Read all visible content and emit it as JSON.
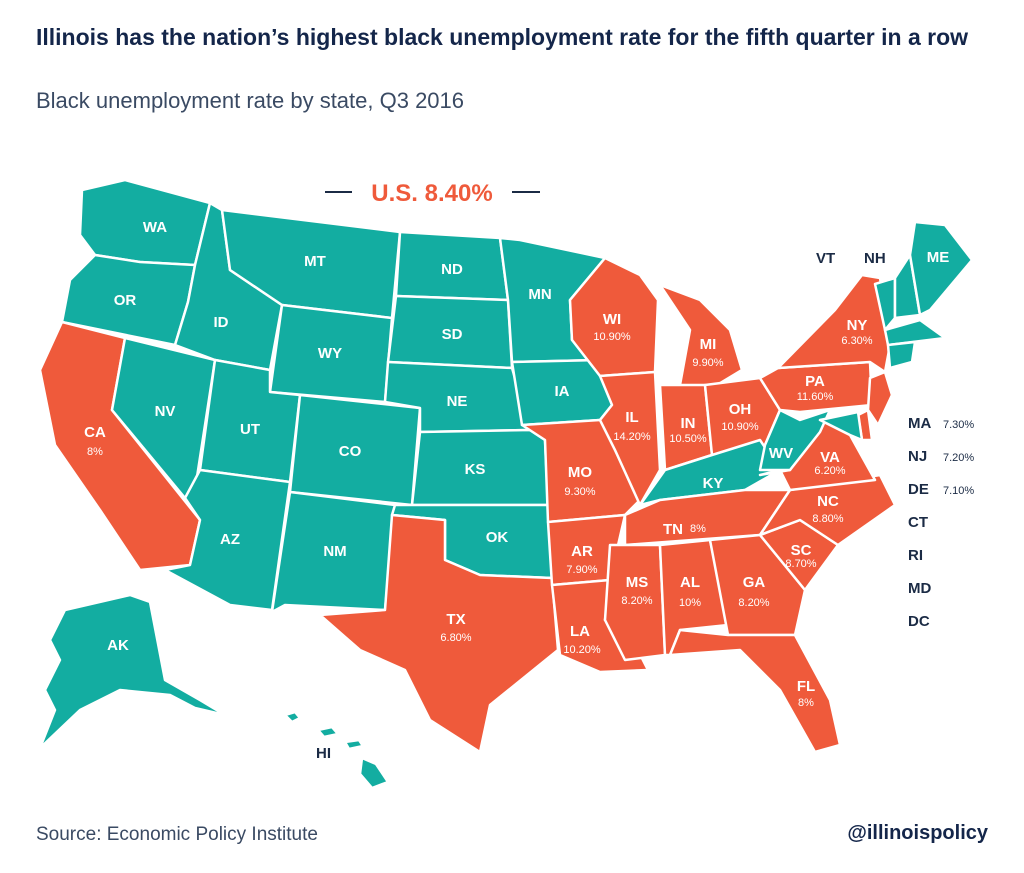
{
  "title": "Illinois has the nation’s highest black unemployment rate for the fifth quarter in a row",
  "subtitle": "Black unemployment rate by state, Q3 2016",
  "us_average": "U.S. 8.40%",
  "source": "Source: Economic Policy Institute",
  "handle": "@illinoispolicy",
  "colors": {
    "highlighted": "#ef5a3b",
    "other": "#13ada1"
  },
  "states": {
    "WA": {
      "label": "WA"
    },
    "OR": {
      "label": "OR"
    },
    "CA": {
      "label": "CA",
      "value": "8%"
    },
    "NV": {
      "label": "NV"
    },
    "ID": {
      "label": "ID"
    },
    "MT": {
      "label": "MT"
    },
    "WY": {
      "label": "WY"
    },
    "UT": {
      "label": "UT"
    },
    "AZ": {
      "label": "AZ"
    },
    "CO": {
      "label": "CO"
    },
    "NM": {
      "label": "NM"
    },
    "ND": {
      "label": "ND"
    },
    "SD": {
      "label": "SD"
    },
    "NE": {
      "label": "NE"
    },
    "KS": {
      "label": "KS"
    },
    "OK": {
      "label": "OK"
    },
    "TX": {
      "label": "TX",
      "value": "6.80%"
    },
    "MN": {
      "label": "MN"
    },
    "IA": {
      "label": "IA"
    },
    "MO": {
      "label": "MO",
      "value": "9.30%"
    },
    "AR": {
      "label": "AR",
      "value": "7.90%"
    },
    "LA": {
      "label": "LA",
      "value": "10.20%"
    },
    "WI": {
      "label": "WI",
      "value": "10.90%"
    },
    "IL": {
      "label": "IL",
      "value": "14.20%"
    },
    "MI": {
      "label": "MI",
      "value": "9.90%"
    },
    "IN": {
      "label": "IN",
      "value": "10.50%"
    },
    "OH": {
      "label": "OH",
      "value": "10.90%"
    },
    "KY": {
      "label": "KY"
    },
    "TN": {
      "label": "TN",
      "value": "8%"
    },
    "MS": {
      "label": "MS",
      "value": "8.20%"
    },
    "AL": {
      "label": "AL",
      "value": "10%"
    },
    "GA": {
      "label": "GA",
      "value": "8.20%"
    },
    "FL": {
      "label": "FL",
      "value": "8%"
    },
    "SC": {
      "label": "SC",
      "value": "8.70%"
    },
    "NC": {
      "label": "NC",
      "value": "8.80%"
    },
    "VA": {
      "label": "VA",
      "value": "6.20%"
    },
    "WV": {
      "label": "WV"
    },
    "PA": {
      "label": "PA",
      "value": "11.60%"
    },
    "NY": {
      "label": "NY",
      "value": "6.30%"
    },
    "ME": {
      "label": "ME"
    },
    "VT": {
      "label": "VT"
    },
    "NH": {
      "label": "NH"
    },
    "AK": {
      "label": "AK"
    },
    "HI": {
      "label": "HI"
    }
  },
  "small_states": [
    {
      "label": "MA",
      "value": "7.30%"
    },
    {
      "label": "NJ",
      "value": "7.20%"
    },
    {
      "label": "DE",
      "value": "7.10%"
    },
    {
      "label": "CT"
    },
    {
      "label": "RI"
    },
    {
      "label": "MD"
    },
    {
      "label": "DC"
    }
  ]
}
